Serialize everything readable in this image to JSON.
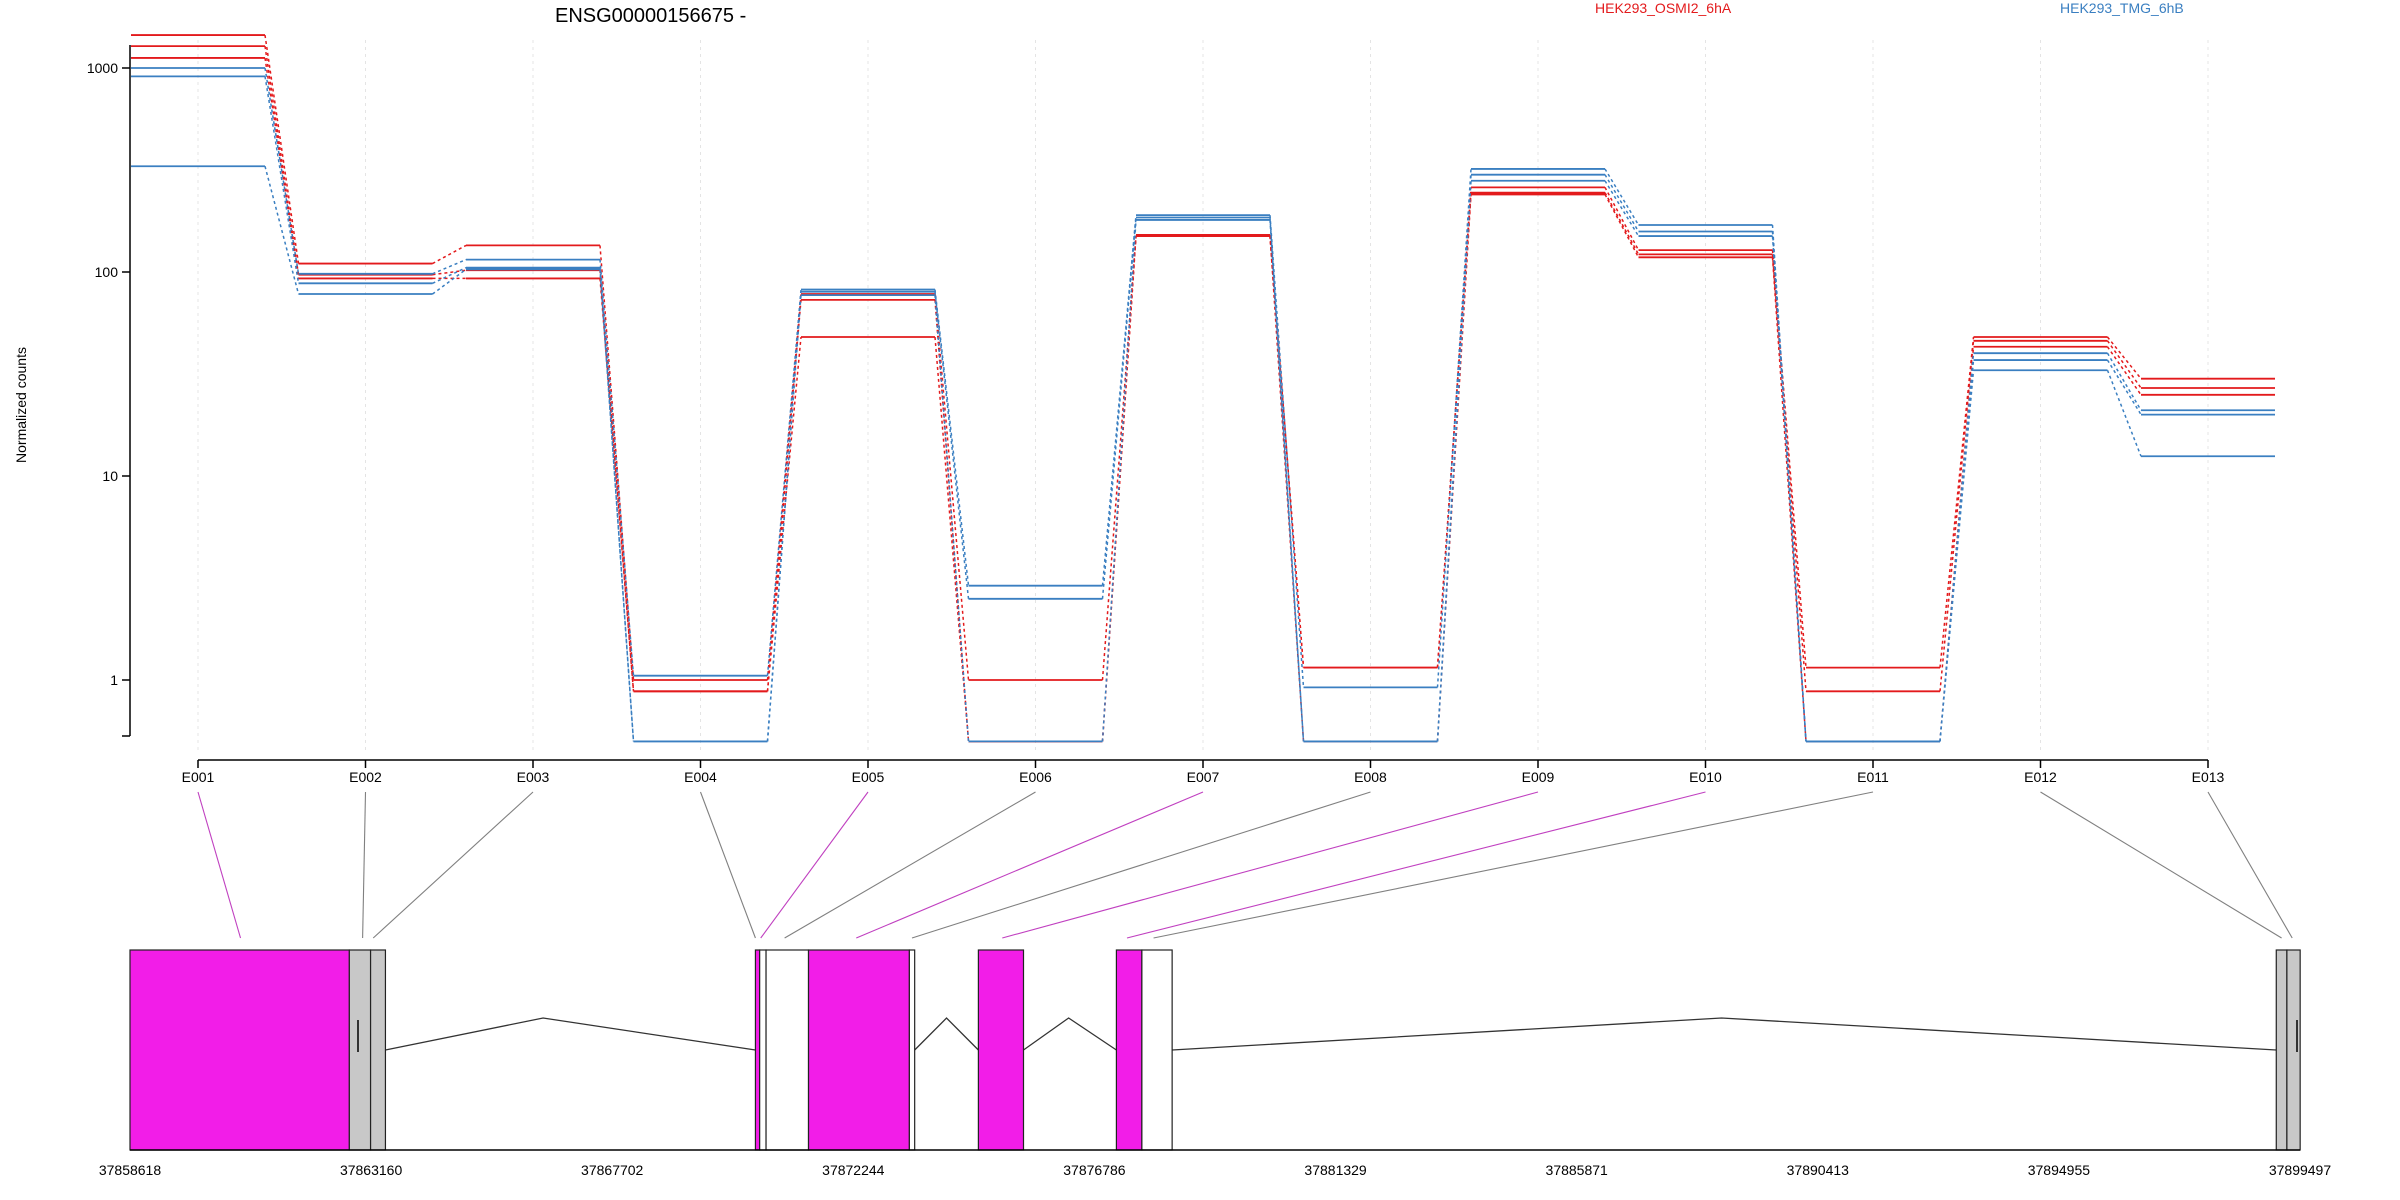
{
  "title": "ENSG00000156675 -",
  "legend": [
    {
      "label": "HEK293_OSMI2_6hA",
      "color": "#e31a1c"
    },
    {
      "label": "HEK293_TMG_6hB",
      "color": "#3a7fc1"
    }
  ],
  "colors": {
    "exon_highlight": "#f21de8",
    "exon_gray": "#c8c8c8",
    "connector_gray": "#808080",
    "connector_magenta": "#c040c0"
  },
  "chart_data": {
    "type": "line",
    "ylabel": "Normalized counts",
    "yscale": "log",
    "yticks": [
      "1",
      "10",
      "100",
      "1000"
    ],
    "ylim": [
      0.5,
      2000
    ],
    "categories": [
      "E001",
      "E002",
      "E003",
      "E004",
      "E005",
      "E006",
      "E007",
      "E008",
      "E009",
      "E010",
      "E011",
      "E012",
      "E013"
    ],
    "series": [
      {
        "group": "HEK293_OSMI2_6hA",
        "values": [
          1450,
          110,
          135,
          1.0,
          78,
          1.0,
          150,
          1.15,
          260,
          128,
          1.15,
          48,
          30
        ]
      },
      {
        "group": "HEK293_OSMI2_6hA",
        "values": [
          1280,
          97,
          102,
          0.88,
          73,
          0.5,
          150,
          1.15,
          245,
          122,
          0.88,
          46,
          27
        ]
      },
      {
        "group": "HEK293_OSMI2_6hA",
        "values": [
          1120,
          93,
          93,
          0.88,
          48,
          0.5,
          152,
          0.5,
          240,
          118,
          0.5,
          43,
          25
        ]
      },
      {
        "group": "HEK293_TMG_6hB",
        "values": [
          1000,
          98,
          115,
          1.05,
          82,
          2.9,
          190,
          0.92,
          320,
          170,
          0.5,
          40,
          21
        ]
      },
      {
        "group": "HEK293_TMG_6hB",
        "values": [
          910,
          88,
          105,
          0.5,
          80,
          2.5,
          185,
          0.5,
          300,
          158,
          0.5,
          37,
          20
        ]
      },
      {
        "group": "HEK293_TMG_6hB",
        "values": [
          330,
          78,
          103,
          0.5,
          77,
          0.5,
          180,
          0.5,
          280,
          150,
          0.5,
          33,
          12.5
        ]
      }
    ],
    "genome": {
      "ticks": [
        "37858618",
        "37863160",
        "37867702",
        "37872244",
        "37876786",
        "37881329",
        "37885871",
        "37890413",
        "37894955",
        "37899497"
      ],
      "exons": [
        {
          "start": 37858618,
          "end": 37862750,
          "color": "#f21de8"
        },
        {
          "start": 37862750,
          "end": 37863150,
          "color": "#c8c8c8"
        },
        {
          "start": 37863150,
          "end": 37863430,
          "color": "#c8c8c8"
        },
        {
          "start": 37870400,
          "end": 37870480,
          "color": "#f21de8"
        },
        {
          "start": 37870480,
          "end": 37870600,
          "color": "#ffffff"
        },
        {
          "start": 37870600,
          "end": 37871400,
          "color": "#ffffff"
        },
        {
          "start": 37871400,
          "end": 37873300,
          "color": "#f21de8"
        },
        {
          "start": 37873300,
          "end": 37873400,
          "color": "#ffffff"
        },
        {
          "start": 37874600,
          "end": 37875450,
          "color": "#f21de8"
        },
        {
          "start": 37877200,
          "end": 37877680,
          "color": "#f21de8"
        },
        {
          "start": 37877680,
          "end": 37878250,
          "color": "#ffffff"
        },
        {
          "start": 37899050,
          "end": 37899250,
          "color": "#c8c8c8"
        },
        {
          "start": 37899250,
          "end": 37899500,
          "color": "#c8c8c8"
        }
      ],
      "introns": [
        {
          "from": 37863430,
          "to": 37870400,
          "peak": 37866400
        },
        {
          "from": 37873400,
          "to": 37874600,
          "peak": 37874000
        },
        {
          "from": 37875450,
          "to": 37877200,
          "peak": 37876300
        },
        {
          "from": 37878250,
          "to": 37899050,
          "peak": 37888600
        }
      ],
      "connectors": [
        {
          "exon": "E001",
          "pos": 37860700,
          "color": "#c040c0"
        },
        {
          "exon": "E002",
          "pos": 37863000,
          "color": "#808080"
        },
        {
          "exon": "E003",
          "pos": 37863200,
          "color": "#808080"
        },
        {
          "exon": "E004",
          "pos": 37870400,
          "color": "#808080"
        },
        {
          "exon": "E005",
          "pos": 37870500,
          "color": "#c040c0"
        },
        {
          "exon": "E006",
          "pos": 37870950,
          "color": "#808080"
        },
        {
          "exon": "E007",
          "pos": 37872300,
          "color": "#c040c0"
        },
        {
          "exon": "E008",
          "pos": 37873350,
          "color": "#808080"
        },
        {
          "exon": "E009",
          "pos": 37875050,
          "color": "#c040c0"
        },
        {
          "exon": "E010",
          "pos": 37877400,
          "color": "#c040c0"
        },
        {
          "exon": "E011",
          "pos": 37877900,
          "color": "#808080"
        },
        {
          "exon": "E012",
          "pos": 37899150,
          "color": "#808080"
        },
        {
          "exon": "E013",
          "pos": 37899350,
          "color": "#808080"
        }
      ]
    }
  }
}
